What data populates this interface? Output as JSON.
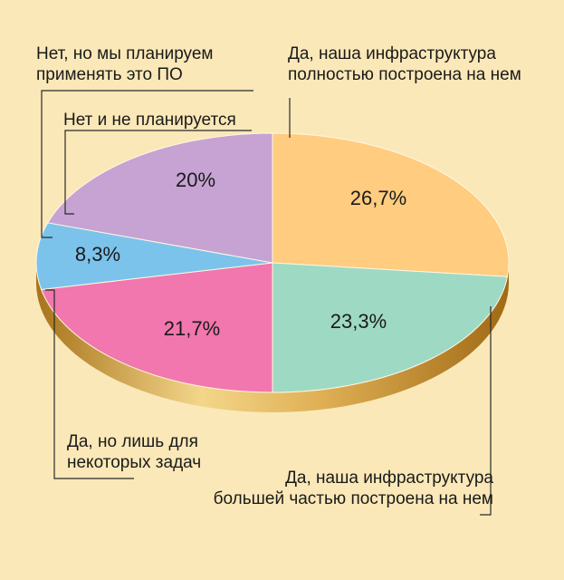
{
  "chart_data": {
    "type": "pie",
    "title": "",
    "slices": [
      {
        "name": "Да, наша инфраструктура полностью построена на нем",
        "lines": [
          "Да, наша инфраструктура",
          "полностью построена на нем"
        ],
        "value": 26.7,
        "label": "26,7%",
        "color": "#ffcc80"
      },
      {
        "name": "Да, наша инфраструктура большей частью построена на нем",
        "lines": [
          "Да, наша инфраструктура",
          "большей частью построена на нем"
        ],
        "value": 23.3,
        "label": "23,3%",
        "color": "#9ed9c4"
      },
      {
        "name": "Да, но лишь для некоторых задач",
        "lines": [
          "Да, но лишь для",
          "некоторых задач"
        ],
        "value": 21.7,
        "label": "21,7%",
        "color": "#f177ae"
      },
      {
        "name": "Нет, но мы планируем применять это ПО",
        "lines": [
          "Нет, но мы планируем",
          "применять это ПО"
        ],
        "value": 8.3,
        "label": "8,3%",
        "color": "#7cc3ec"
      },
      {
        "name": "Нет и не планируется",
        "lines": [
          "Нет и не планируется"
        ],
        "value": 20,
        "label": "20%",
        "color": "#c6a3d3"
      }
    ]
  }
}
